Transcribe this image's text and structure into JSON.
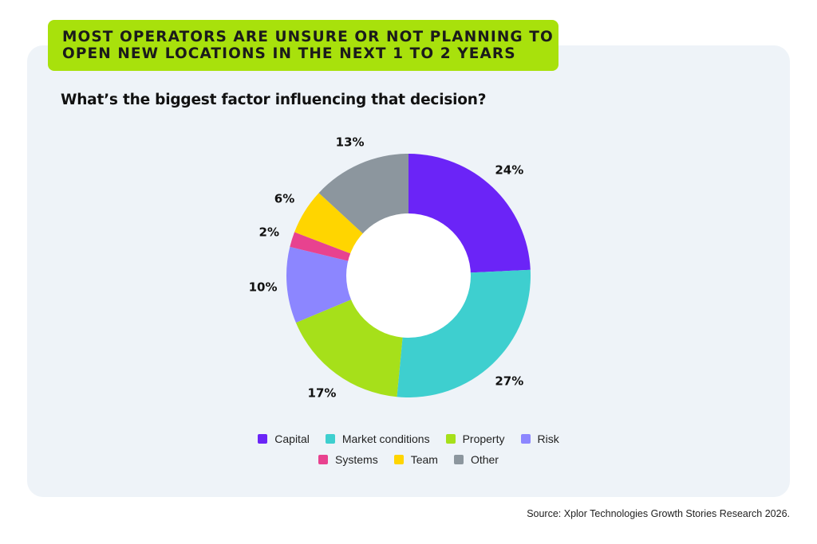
{
  "header": {
    "banner_line1": "MOST OPERATORS ARE UNSURE OR NOT PLANNING TO",
    "banner_line2": "OPEN NEW LOCATIONS IN THE NEXT 1 TO 2 YEARS",
    "banner_color": "#a8e10c"
  },
  "question": "What’s the biggest factor influencing that decision?",
  "source": "Source: Xplor Technologies Growth Stories Research 2026.",
  "chart_data": {
    "type": "pie",
    "title": "",
    "donut": true,
    "start": "12 o'clock, clockwise",
    "categories": [
      "Capital",
      "Market conditions",
      "Property",
      "Risk",
      "Systems",
      "Team",
      "Other"
    ],
    "values": [
      24,
      27,
      17,
      10,
      2,
      6,
      13
    ],
    "labels": [
      "24%",
      "27%",
      "17%",
      "10%",
      "2%",
      "6%",
      "13%"
    ],
    "colors": [
      "#6b24f7",
      "#3ecfcf",
      "#a6e01a",
      "#8c86ff",
      "#e8428f",
      "#ffd500",
      "#8c969e"
    ],
    "legend": {
      "placement": "bottom",
      "rows": [
        [
          "Capital",
          "Market conditions",
          "Property",
          "Risk"
        ],
        [
          "Systems",
          "Team",
          "Other"
        ]
      ]
    }
  }
}
